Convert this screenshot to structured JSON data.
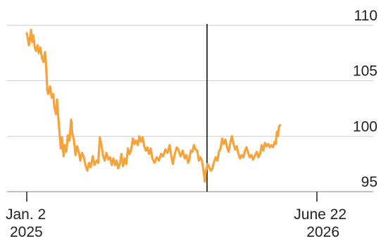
{
  "chart_data": {
    "type": "line",
    "title": "",
    "xlabel": "",
    "ylabel": "",
    "xlim": [
      "2025-01-02",
      "2026-06-22"
    ],
    "ylim": [
      95,
      110
    ],
    "grid": true,
    "y_ticks": [
      "110",
      "105",
      "100",
      "95"
    ],
    "x_ticks": [
      {
        "line1": "Jan. 2",
        "line2": "2025"
      },
      {
        "line1": "June 22",
        "line2": "2026"
      }
    ],
    "vertical_marker": "2025-12-01",
    "colors": {
      "series": "#f5a33a",
      "marker": "#111111",
      "grid": "#cfcfcf"
    },
    "series": [
      {
        "color": "#f5a33a",
        "points": [
          [
            "2025-01-02",
            109.3
          ],
          [
            "2025-01-04",
            108.8
          ],
          [
            "2025-01-06",
            108.2
          ],
          [
            "2025-01-08",
            108.9
          ],
          [
            "2025-01-10",
            109.6
          ],
          [
            "2025-01-12",
            108.5
          ],
          [
            "2025-01-14",
            109.1
          ],
          [
            "2025-01-17",
            108.0
          ],
          [
            "2025-01-19",
            107.7
          ],
          [
            "2025-01-22",
            108.2
          ],
          [
            "2025-01-24",
            107.5
          ],
          [
            "2025-01-27",
            108.0
          ],
          [
            "2025-01-30",
            107.1
          ],
          [
            "2025-02-02",
            106.7
          ],
          [
            "2025-02-05",
            107.6
          ],
          [
            "2025-02-07",
            106.1
          ],
          [
            "2025-02-09",
            104.1
          ],
          [
            "2025-02-11",
            103.8
          ],
          [
            "2025-02-14",
            104.5
          ],
          [
            "2025-02-17",
            103.5
          ],
          [
            "2025-02-20",
            103.8
          ],
          [
            "2025-02-22",
            102.6
          ],
          [
            "2025-02-25",
            102.0
          ],
          [
            "2025-02-27",
            103.3
          ],
          [
            "2025-03-02",
            101.2
          ],
          [
            "2025-03-04",
            100.0
          ],
          [
            "2025-03-06",
            98.9
          ],
          [
            "2025-03-08",
            99.9
          ],
          [
            "2025-03-11",
            98.2
          ],
          [
            "2025-03-13",
            99.2
          ],
          [
            "2025-03-16",
            98.6
          ],
          [
            "2025-03-19",
            100.1
          ],
          [
            "2025-03-22",
            99.6
          ],
          [
            "2025-03-25",
            101.5
          ],
          [
            "2025-03-27",
            100.3
          ],
          [
            "2025-03-30",
            99.7
          ],
          [
            "2025-04-02",
            98.3
          ],
          [
            "2025-04-05",
            99.1
          ],
          [
            "2025-04-08",
            98.6
          ],
          [
            "2025-04-11",
            97.8
          ],
          [
            "2025-04-14",
            98.5
          ],
          [
            "2025-04-17",
            98.2
          ],
          [
            "2025-04-21",
            97.3
          ],
          [
            "2025-04-24",
            96.9
          ],
          [
            "2025-04-27",
            97.6
          ],
          [
            "2025-04-30",
            97.2
          ],
          [
            "2025-05-04",
            98.2
          ],
          [
            "2025-05-07",
            97.4
          ],
          [
            "2025-05-11",
            97.8
          ],
          [
            "2025-05-14",
            97.6
          ],
          [
            "2025-05-17",
            99.9
          ],
          [
            "2025-05-20",
            99.2
          ],
          [
            "2025-05-23",
            98.2
          ],
          [
            "2025-05-26",
            97.8
          ],
          [
            "2025-05-29",
            98.5
          ],
          [
            "2025-06-02",
            97.9
          ],
          [
            "2025-06-05",
            98.1
          ],
          [
            "2025-06-08",
            97.4
          ],
          [
            "2025-06-11",
            98.0
          ],
          [
            "2025-06-14",
            97.4
          ],
          [
            "2025-06-17",
            97.8
          ],
          [
            "2025-06-20",
            97.1
          ],
          [
            "2025-06-23",
            97.5
          ],
          [
            "2025-06-26",
            98.4
          ],
          [
            "2025-06-29",
            97.3
          ],
          [
            "2025-07-02",
            98.0
          ],
          [
            "2025-07-05",
            97.5
          ],
          [
            "2025-07-08",
            98.9
          ],
          [
            "2025-07-11",
            98.4
          ],
          [
            "2025-07-14",
            98.8
          ],
          [
            "2025-07-17",
            99.8
          ],
          [
            "2025-07-20",
            99.3
          ],
          [
            "2025-07-23",
            99.6
          ],
          [
            "2025-07-26",
            99.2
          ],
          [
            "2025-07-29",
            100.0
          ],
          [
            "2025-08-01",
            99.5
          ],
          [
            "2025-08-04",
            99.9
          ],
          [
            "2025-08-07",
            99.1
          ],
          [
            "2025-08-10",
            98.7
          ],
          [
            "2025-08-13",
            99.0
          ],
          [
            "2025-08-16",
            98.4
          ],
          [
            "2025-08-19",
            98.9
          ],
          [
            "2025-08-22",
            98.0
          ],
          [
            "2025-08-26",
            97.6
          ],
          [
            "2025-08-30",
            98.1
          ],
          [
            "2025-09-03",
            97.8
          ],
          [
            "2025-09-07",
            98.4
          ],
          [
            "2025-09-11",
            98.2
          ],
          [
            "2025-09-15",
            98.8
          ],
          [
            "2025-09-19",
            98.5
          ],
          [
            "2025-09-23",
            99.2
          ],
          [
            "2025-09-26",
            98.2
          ],
          [
            "2025-09-29",
            97.5
          ],
          [
            "2025-10-02",
            98.3
          ],
          [
            "2025-10-06",
            99.0
          ],
          [
            "2025-10-09",
            98.8
          ],
          [
            "2025-10-13",
            98.2
          ],
          [
            "2025-10-17",
            98.7
          ],
          [
            "2025-10-21",
            98.0
          ],
          [
            "2025-10-24",
            98.3
          ],
          [
            "2025-10-27",
            97.6
          ],
          [
            "2025-10-29",
            97.8
          ],
          [
            "2025-11-01",
            98.7
          ],
          [
            "2025-11-04",
            98.6
          ],
          [
            "2025-11-07",
            99.2
          ],
          [
            "2025-11-10",
            98.8
          ],
          [
            "2025-11-13",
            98.7
          ],
          [
            "2025-11-16",
            97.8
          ],
          [
            "2025-11-19",
            98.1
          ],
          [
            "2025-11-22",
            97.7
          ],
          [
            "2025-11-25",
            96.7
          ],
          [
            "2025-11-27",
            95.9
          ],
          [
            "2025-11-29",
            96.9
          ],
          [
            "2025-12-02",
            97.5
          ],
          [
            "2025-12-05",
            97.2
          ],
          [
            "2025-12-08",
            96.9
          ],
          [
            "2025-12-11",
            97.1
          ],
          [
            "2025-12-14",
            97.7
          ],
          [
            "2025-12-17",
            98.1
          ],
          [
            "2025-12-20",
            97.8
          ],
          [
            "2025-12-23",
            98.6
          ],
          [
            "2025-12-26",
            98.9
          ],
          [
            "2025-12-29",
            99.8
          ],
          [
            "2026-01-01",
            99.3
          ],
          [
            "2026-01-04",
            99.7
          ],
          [
            "2026-01-07",
            99.0
          ],
          [
            "2026-01-10",
            98.6
          ],
          [
            "2026-01-13",
            99.4
          ],
          [
            "2026-01-16",
            100.0
          ],
          [
            "2026-01-19",
            99.3
          ],
          [
            "2026-01-22",
            98.8
          ],
          [
            "2026-01-25",
            99.1
          ],
          [
            "2026-01-28",
            98.4
          ],
          [
            "2026-01-31",
            98.0
          ],
          [
            "2026-02-03",
            98.3
          ],
          [
            "2026-02-06",
            98.1
          ],
          [
            "2026-02-09",
            98.7
          ],
          [
            "2026-02-12",
            99.0
          ],
          [
            "2026-02-15",
            98.5
          ],
          [
            "2026-02-18",
            98.1
          ],
          [
            "2026-02-21",
            98.3
          ],
          [
            "2026-02-24",
            97.9
          ],
          [
            "2026-02-27",
            98.2
          ],
          [
            "2026-03-03",
            98.6
          ],
          [
            "2026-03-06",
            98.1
          ],
          [
            "2026-03-09",
            98.4
          ],
          [
            "2026-03-12",
            99.2
          ],
          [
            "2026-03-15",
            98.7
          ],
          [
            "2026-03-18",
            99.4
          ],
          [
            "2026-03-21",
            99.1
          ],
          [
            "2026-03-24",
            99.3
          ],
          [
            "2026-03-27",
            99.0
          ],
          [
            "2026-03-30",
            99.2
          ],
          [
            "2026-04-02",
            99.0
          ],
          [
            "2026-04-05",
            99.5
          ],
          [
            "2026-04-07",
            99.3
          ],
          [
            "2026-04-09",
            100.4
          ],
          [
            "2026-04-11",
            100.0
          ],
          [
            "2026-04-13",
            100.9
          ],
          [
            "2026-04-15",
            101.0
          ]
        ]
      }
    ]
  }
}
